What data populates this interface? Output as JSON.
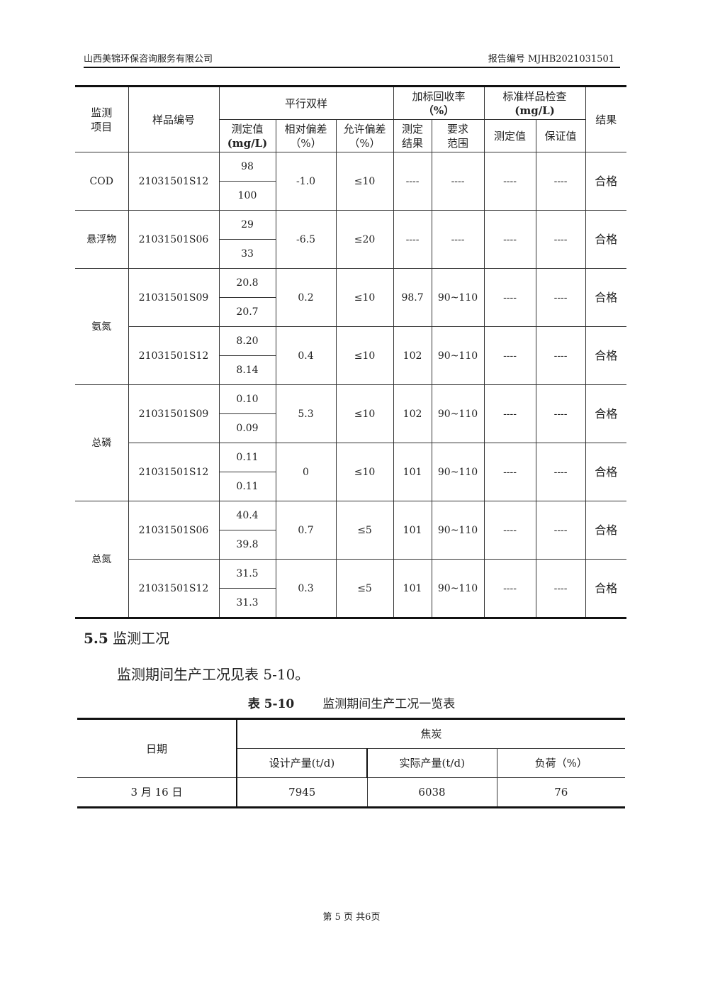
{
  "header": {
    "company": "山西美锦环保咨询服务有限公司",
    "report_no": "报告编号 MJHB2021031501"
  },
  "qc_table": {
    "headers": {
      "item": "监测项目",
      "sample_id": "样品编号",
      "parallel": "平行双样",
      "measured": "测定值",
      "measured_unit": "(mg/L)",
      "rel_dev": "相对偏差（%）",
      "allow_dev": "允许偏差（%）",
      "recovery": "加标回收率",
      "recovery_unit": "（%）",
      "rec_result": "测定结果",
      "rec_range": "要求范围",
      "std": "标准样品检查",
      "std_unit": "(mg/L)",
      "std_measured": "测定值",
      "std_guaranteed": "保证值",
      "result": "结果"
    },
    "groups": [
      {
        "item": "COD",
        "samples": [
          {
            "id": "21031501S12",
            "values": [
              "98",
              "100"
            ],
            "rel_dev": "-1.0",
            "allow": "≤10",
            "recovery": "----",
            "range": "----",
            "std_m": "----",
            "std_g": "----",
            "result": "合格"
          }
        ]
      },
      {
        "item": "悬浮物",
        "samples": [
          {
            "id": "21031501S06",
            "values": [
              "29",
              "33"
            ],
            "rel_dev": "-6.5",
            "allow": "≤20",
            "recovery": "----",
            "range": "----",
            "std_m": "----",
            "std_g": "----",
            "result": "合格"
          }
        ]
      },
      {
        "item": "氨氮",
        "samples": [
          {
            "id": "21031501S09",
            "values": [
              "20.8",
              "20.7"
            ],
            "rel_dev": "0.2",
            "allow": "≤10",
            "recovery": "98.7",
            "range": "90~110",
            "std_m": "----",
            "std_g": "----",
            "result": "合格"
          },
          {
            "id": "21031501S12",
            "values": [
              "8.20",
              "8.14"
            ],
            "rel_dev": "0.4",
            "allow": "≤10",
            "recovery": "102",
            "range": "90~110",
            "std_m": "----",
            "std_g": "----",
            "result": "合格"
          }
        ]
      },
      {
        "item": "总磷",
        "samples": [
          {
            "id": "21031501S09",
            "values": [
              "0.10",
              "0.09"
            ],
            "rel_dev": "5.3",
            "allow": "≤10",
            "recovery": "102",
            "range": "90~110",
            "std_m": "----",
            "std_g": "----",
            "result": "合格"
          },
          {
            "id": "21031501S12",
            "values": [
              "0.11",
              "0.11"
            ],
            "rel_dev": "0",
            "allow": "≤10",
            "recovery": "101",
            "range": "90~110",
            "std_m": "----",
            "std_g": "----",
            "result": "合格"
          }
        ]
      },
      {
        "item": "总氮",
        "samples": [
          {
            "id": "21031501S06",
            "values": [
              "40.4",
              "39.8"
            ],
            "rel_dev": "0.7",
            "allow": "≤5",
            "recovery": "101",
            "range": "90~110",
            "std_m": "----",
            "std_g": "----",
            "result": "合格"
          },
          {
            "id": "21031501S12",
            "values": [
              "31.5",
              "31.3"
            ],
            "rel_dev": "0.3",
            "allow": "≤5",
            "recovery": "101",
            "range": "90~110",
            "std_m": "----",
            "std_g": "----",
            "result": "合格"
          }
        ]
      }
    ]
  },
  "section": {
    "title_num": "5.5",
    "title": "监测工况",
    "paragraph": "监测期间生产工况见表 5-10。"
  },
  "prod_table": {
    "caption_num": "表 5-10",
    "caption": "监测期间生产工况一览表",
    "date_header": "日期",
    "group_header": "焦炭",
    "design_header": "设计产量(t/d)",
    "actual_header": "实际产量(t/d)",
    "load_header": "负荷（%）",
    "rows": [
      {
        "date": "3 月 16 日",
        "design": "7945",
        "actual": "6038",
        "load": "76"
      }
    ]
  },
  "footer": "第 5 页 共6页"
}
